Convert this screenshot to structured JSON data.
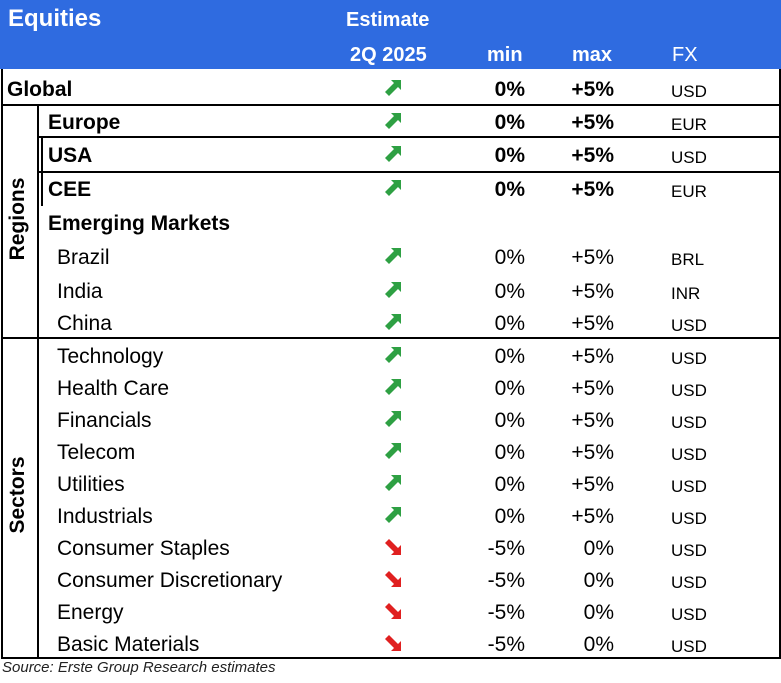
{
  "header": {
    "title": "Equities",
    "estimate": "Estimate",
    "quarter": "2Q 2025",
    "min": "min",
    "max": "max",
    "fx": "FX"
  },
  "groups": {
    "regions": "Regions",
    "sectors": "Sectors"
  },
  "rows": [
    {
      "label": "Global",
      "min": "0%",
      "max": "+5%",
      "fx": "USD",
      "trend": "up"
    },
    {
      "label": "Europe",
      "min": "0%",
      "max": "+5%",
      "fx": "EUR",
      "trend": "up"
    },
    {
      "label": "USA",
      "min": "0%",
      "max": "+5%",
      "fx": "USD",
      "trend": "up"
    },
    {
      "label": "CEE",
      "min": "0%",
      "max": "+5%",
      "fx": "EUR",
      "trend": "up"
    },
    {
      "label": "Emerging Markets",
      "min": "",
      "max": "",
      "fx": "",
      "trend": ""
    },
    {
      "label": "Brazil",
      "min": "0%",
      "max": "+5%",
      "fx": "BRL",
      "trend": "up"
    },
    {
      "label": "India",
      "min": "0%",
      "max": "+5%",
      "fx": "INR",
      "trend": "up"
    },
    {
      "label": "China",
      "min": "0%",
      "max": "+5%",
      "fx": "USD",
      "trend": "up"
    },
    {
      "label": "Technology",
      "min": "0%",
      "max": "+5%",
      "fx": "USD",
      "trend": "up"
    },
    {
      "label": "Health Care",
      "min": "0%",
      "max": "+5%",
      "fx": "USD",
      "trend": "up"
    },
    {
      "label": "Financials",
      "min": "0%",
      "max": "+5%",
      "fx": "USD",
      "trend": "up"
    },
    {
      "label": "Telecom",
      "min": "0%",
      "max": "+5%",
      "fx": "USD",
      "trend": "up"
    },
    {
      "label": "Utilities",
      "min": "0%",
      "max": "+5%",
      "fx": "USD",
      "trend": "up"
    },
    {
      "label": "Industrials",
      "min": "0%",
      "max": "+5%",
      "fx": "USD",
      "trend": "up"
    },
    {
      "label": "Consumer Staples",
      "min": "-5%",
      "max": "0%",
      "fx": "USD",
      "trend": "down"
    },
    {
      "label": "Consumer Discretionary",
      "min": "-5%",
      "max": "0%",
      "fx": "USD",
      "trend": "down"
    },
    {
      "label": "Energy",
      "min": "-5%",
      "max": "0%",
      "fx": "USD",
      "trend": "down"
    },
    {
      "label": "Basic Materials",
      "min": "-5%",
      "max": "0%",
      "fx": "USD",
      "trend": "down"
    }
  ],
  "colors": {
    "header_bg": "#2f6be0",
    "up": "#2ea043",
    "down": "#e02020"
  },
  "icons": {
    "up": "arrow-up-right-icon",
    "down": "arrow-down-right-icon"
  },
  "source": "Source: Erste Group Research estimates"
}
